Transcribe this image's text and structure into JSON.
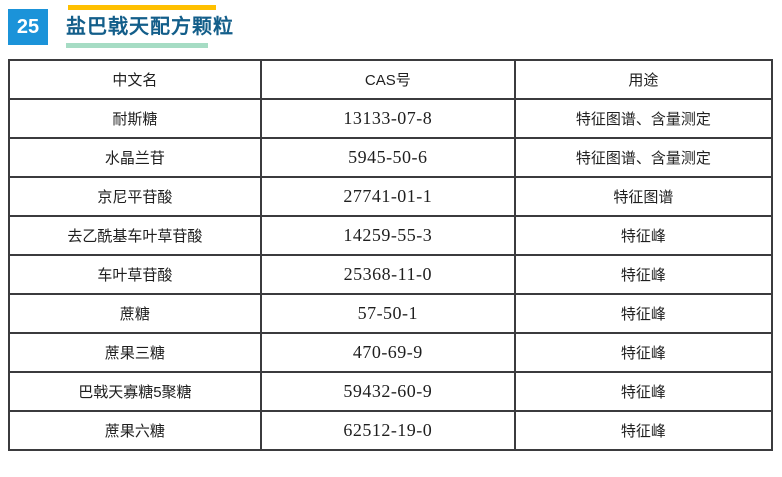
{
  "header": {
    "badge_number": "25",
    "title": "盐巴戟天配方颗粒",
    "accent_colors": {
      "badge_blue": "#1b93d9",
      "title_blue": "#135e8a",
      "bar_yellow": "#ffc000",
      "bar_mint": "#a6dcc4"
    }
  },
  "table": {
    "columns": [
      "中文名",
      "CAS号",
      "用途"
    ],
    "rows": [
      {
        "name": "耐斯糖",
        "cas": "13133-07-8",
        "use": "特征图谱、含量测定"
      },
      {
        "name": "水晶兰苷",
        "cas": "5945-50-6",
        "use": "特征图谱、含量测定"
      },
      {
        "name": "京尼平苷酸",
        "cas": "27741-01-1",
        "use": "特征图谱"
      },
      {
        "name": "去乙酰基车叶草苷酸",
        "cas": "14259-55-3",
        "use": "特征峰"
      },
      {
        "name": "车叶草苷酸",
        "cas": "25368-11-0",
        "use": "特征峰"
      },
      {
        "name": "蔗糖",
        "cas": "57-50-1",
        "use": "特征峰"
      },
      {
        "name": "蔗果三糖",
        "cas": "470-69-9",
        "use": "特征峰"
      },
      {
        "name": "巴戟天寡糖5聚糖",
        "cas": "59432-60-9",
        "use": "特征峰"
      },
      {
        "name": "蔗果六糖",
        "cas": "62512-19-0",
        "use": "特征峰"
      }
    ]
  }
}
